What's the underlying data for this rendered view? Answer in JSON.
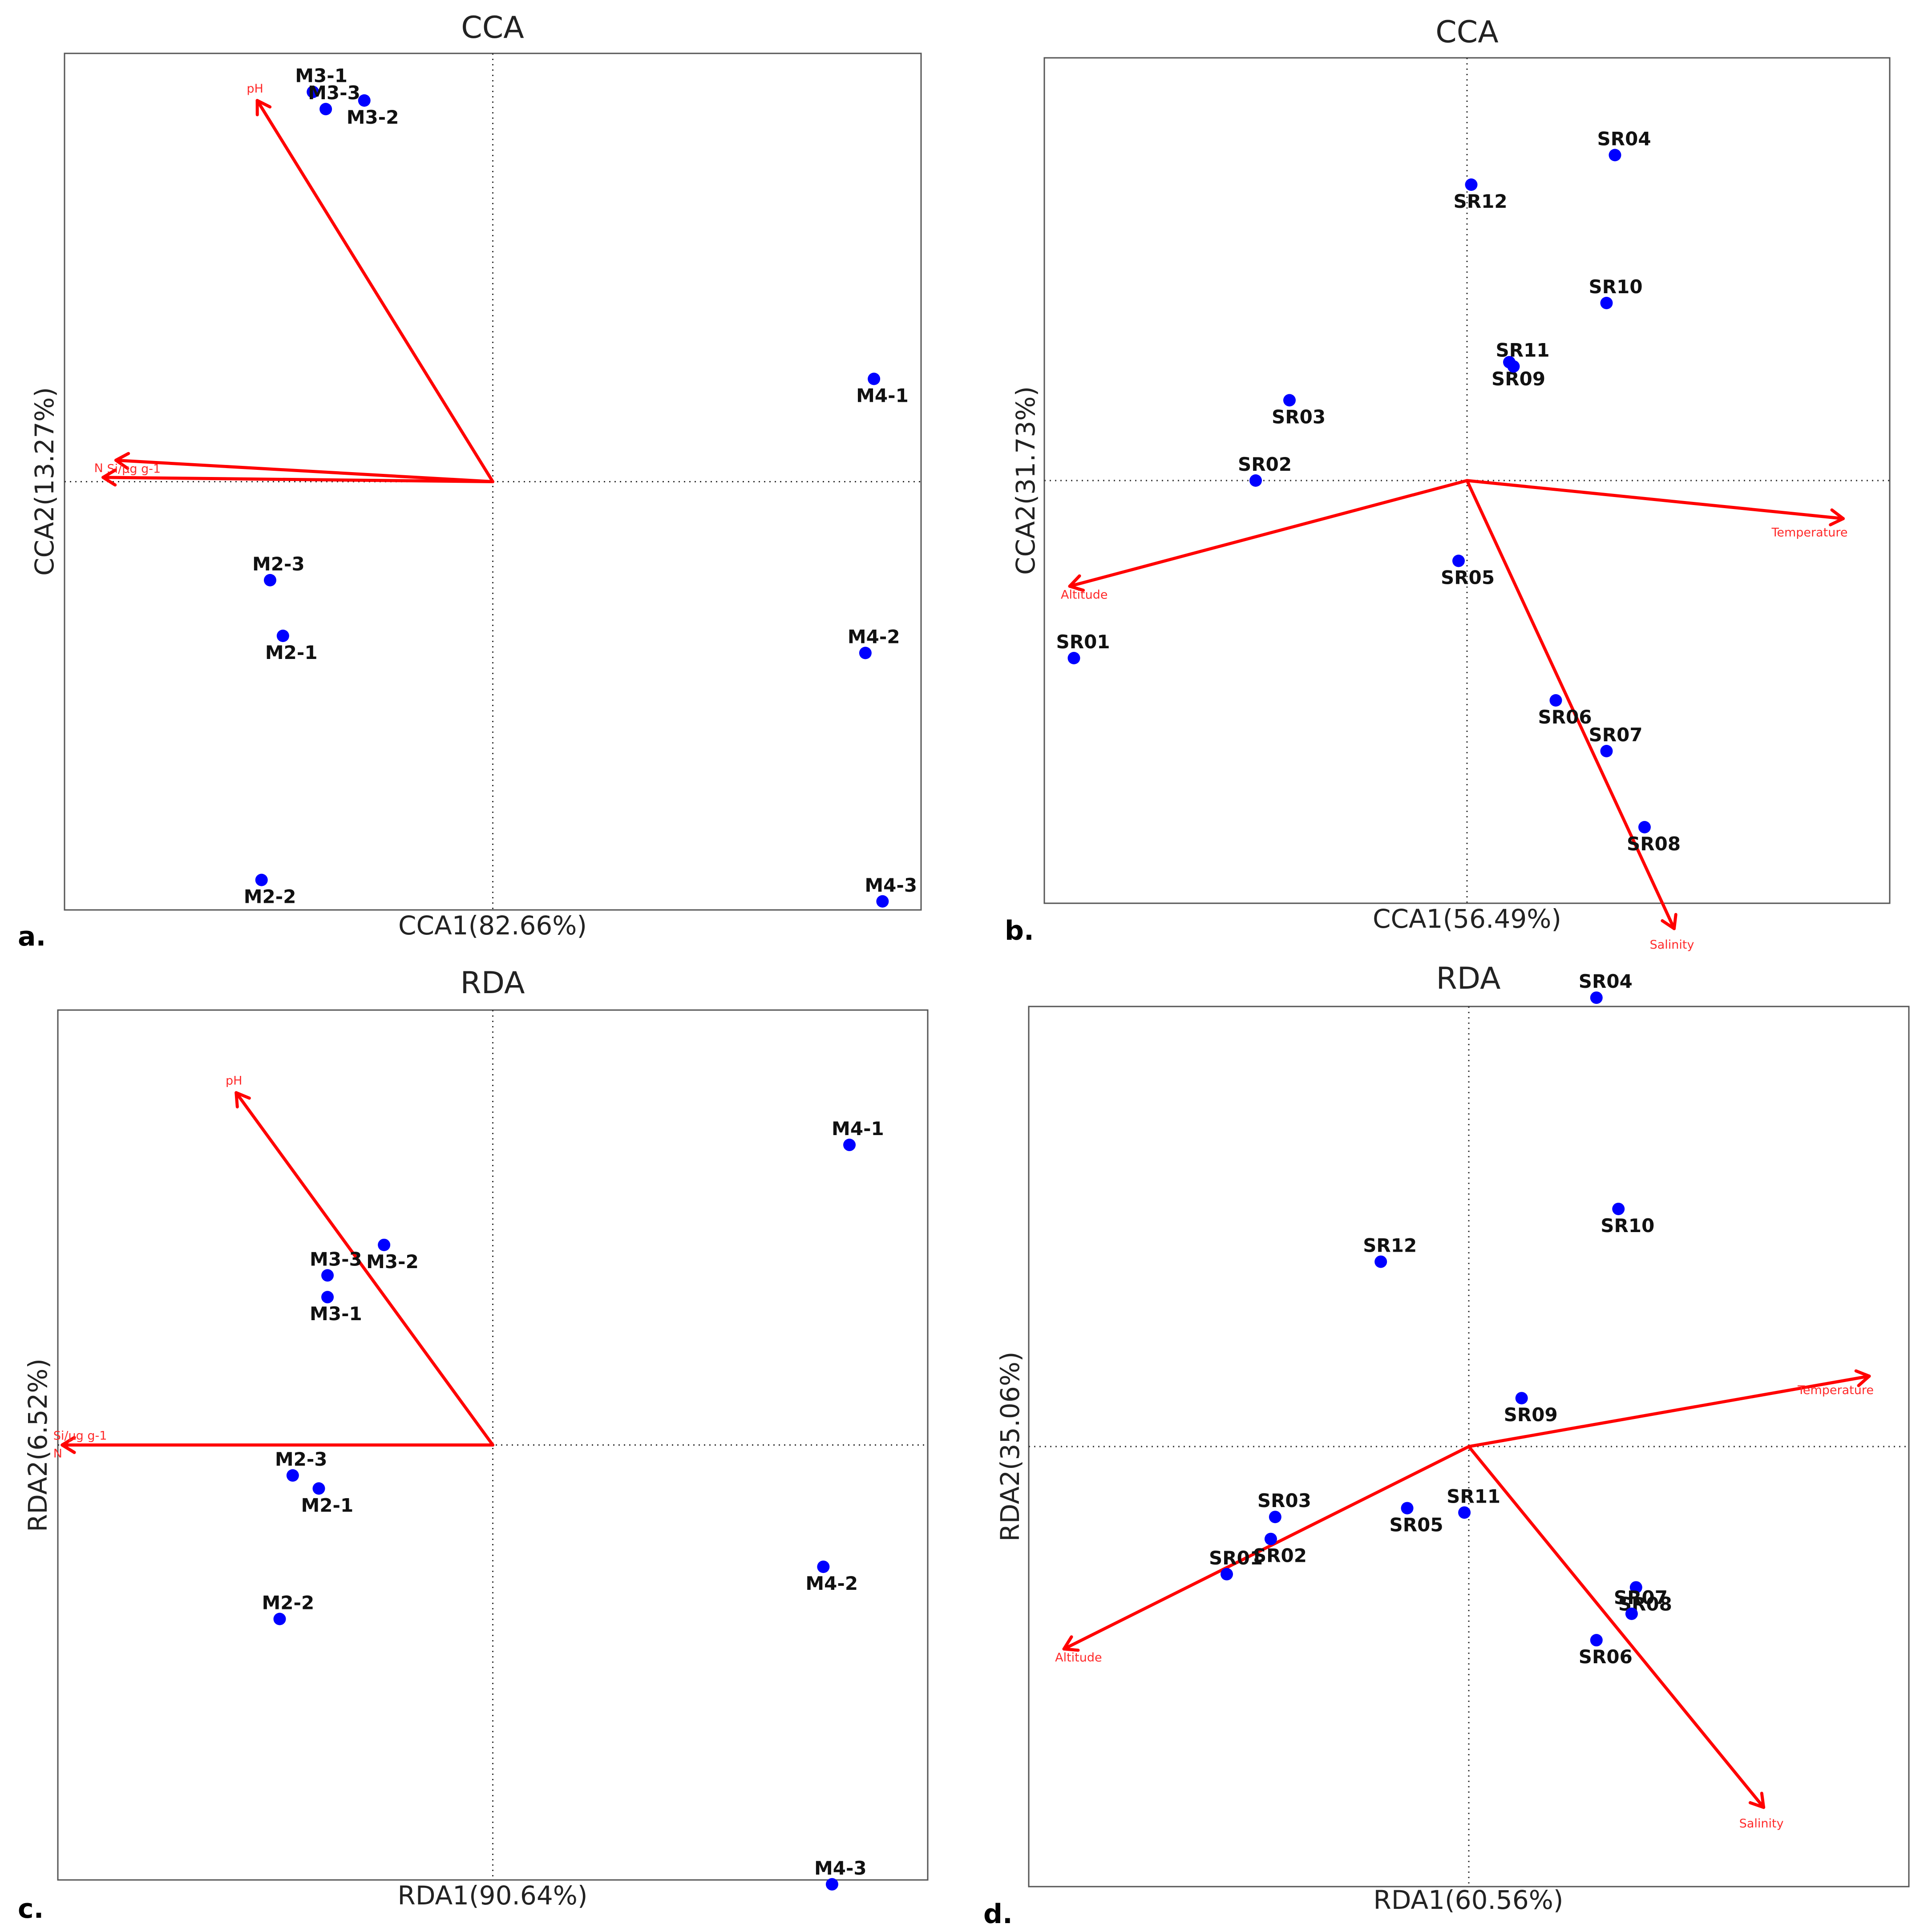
{
  "panel_letters": [
    "a.",
    "b.",
    "c.",
    "d."
  ],
  "chart_data": [
    {
      "type": "scatter",
      "title": "CCA",
      "xlabel": "CCA1(82.66%)",
      "ylabel": "CCA2(13.27%)",
      "xlim": [
        -1.0,
        1.0
      ],
      "ylim": [
        -1.0,
        1.0
      ],
      "points": [
        {
          "label": "M3-1",
          "x": -0.42,
          "y": 0.91
        },
        {
          "label": "M3-2",
          "x": -0.3,
          "y": 0.89
        },
        {
          "label": "M3-3",
          "x": -0.39,
          "y": 0.87
        },
        {
          "label": "M4-1",
          "x": 0.89,
          "y": 0.24
        },
        {
          "label": "M2-3",
          "x": -0.52,
          "y": -0.23
        },
        {
          "label": "M2-1",
          "x": -0.49,
          "y": -0.36
        },
        {
          "label": "M4-2",
          "x": 0.87,
          "y": -0.4
        },
        {
          "label": "M2-2",
          "x": -0.54,
          "y": -0.93
        },
        {
          "label": "M4-3",
          "x": 0.91,
          "y": -0.98
        }
      ],
      "vectors": [
        {
          "label": "pH",
          "x": -0.55,
          "y": 0.89
        },
        {
          "label": "Si/μg g-1",
          "x": -0.88,
          "y": 0.05
        },
        {
          "label": "N",
          "x": -0.91,
          "y": 0.01
        }
      ]
    },
    {
      "type": "scatter",
      "title": "CCA",
      "xlabel": "CCA1(56.49%)",
      "ylabel": "CCA2(31.73%)",
      "xlim": [
        -1.0,
        1.0
      ],
      "ylim": [
        -1.0,
        1.0
      ],
      "points": [
        {
          "label": "SR04",
          "x": 0.35,
          "y": 0.77
        },
        {
          "label": "SR12",
          "x": 0.01,
          "y": 0.7
        },
        {
          "label": "SR10",
          "x": 0.33,
          "y": 0.42
        },
        {
          "label": "SR09",
          "x": 0.1,
          "y": 0.28
        },
        {
          "label": "SR11",
          "x": 0.11,
          "y": 0.27
        },
        {
          "label": "SR03",
          "x": -0.42,
          "y": 0.19
        },
        {
          "label": "SR02",
          "x": -0.5,
          "y": 0.0
        },
        {
          "label": "SR05",
          "x": -0.02,
          "y": -0.19
        },
        {
          "label": "SR01",
          "x": -0.93,
          "y": -0.42
        },
        {
          "label": "SR06",
          "x": 0.21,
          "y": -0.52
        },
        {
          "label": "SR07",
          "x": 0.33,
          "y": -0.64
        },
        {
          "label": "SR08",
          "x": 0.42,
          "y": -0.82
        }
      ],
      "vectors": [
        {
          "label": "Temperature",
          "x": 0.89,
          "y": -0.09
        },
        {
          "label": "Altitude",
          "x": -0.94,
          "y": -0.25
        },
        {
          "label": "Salinity",
          "x": 0.49,
          "y": -1.06
        }
      ]
    },
    {
      "type": "scatter",
      "title": "RDA",
      "xlabel": "RDA1(90.64%)",
      "ylabel": "RDA2(6.52%)",
      "xlim": [
        -1.0,
        1.0
      ],
      "ylim": [
        -1.0,
        1.0
      ],
      "points": [
        {
          "label": "M4-1",
          "x": 0.82,
          "y": 0.69
        },
        {
          "label": "M3-2",
          "x": -0.25,
          "y": 0.46
        },
        {
          "label": "M3-3",
          "x": -0.38,
          "y": 0.39
        },
        {
          "label": "M3-1",
          "x": -0.38,
          "y": 0.34
        },
        {
          "label": "M2-3",
          "x": -0.46,
          "y": -0.07
        },
        {
          "label": "M2-1",
          "x": -0.4,
          "y": -0.1
        },
        {
          "label": "M2-2",
          "x": -0.49,
          "y": -0.4
        },
        {
          "label": "M4-2",
          "x": 0.76,
          "y": -0.28
        },
        {
          "label": "M4-3",
          "x": 0.78,
          "y": -1.01
        }
      ],
      "vectors": [
        {
          "label": "pH",
          "x": -0.59,
          "y": 0.81
        },
        {
          "label": "N",
          "x": -0.99,
          "y": 0.0
        },
        {
          "label": "Si/μg g-1",
          "x": -0.99,
          "y": 0.0
        }
      ]
    },
    {
      "type": "scatter",
      "title": "RDA",
      "xlabel": "RDA1(60.56%)",
      "ylabel": "RDA2(35.06%)",
      "xlim": [
        -1.0,
        1.0
      ],
      "ylim": [
        -1.0,
        1.0
      ],
      "points": [
        {
          "label": "SR04",
          "x": 0.29,
          "y": 1.02
        },
        {
          "label": "SR10",
          "x": 0.34,
          "y": 0.54
        },
        {
          "label": "SR12",
          "x": -0.2,
          "y": 0.42
        },
        {
          "label": "SR09",
          "x": 0.12,
          "y": 0.11
        },
        {
          "label": "SR03",
          "x": -0.44,
          "y": -0.16
        },
        {
          "label": "SR05",
          "x": -0.14,
          "y": -0.14
        },
        {
          "label": "SR11",
          "x": -0.01,
          "y": -0.15
        },
        {
          "label": "SR02",
          "x": -0.45,
          "y": -0.21
        },
        {
          "label": "SR01",
          "x": -0.55,
          "y": -0.29
        },
        {
          "label": "SR08",
          "x": 0.38,
          "y": -0.32
        },
        {
          "label": "SR07",
          "x": 0.37,
          "y": -0.38
        },
        {
          "label": "SR06",
          "x": 0.29,
          "y": -0.44
        }
      ],
      "vectors": [
        {
          "label": "Temperature",
          "x": 0.91,
          "y": 0.16
        },
        {
          "label": "Altitude",
          "x": -0.92,
          "y": -0.46
        },
        {
          "label": "Salinity",
          "x": 0.67,
          "y": -0.82
        }
      ]
    }
  ]
}
